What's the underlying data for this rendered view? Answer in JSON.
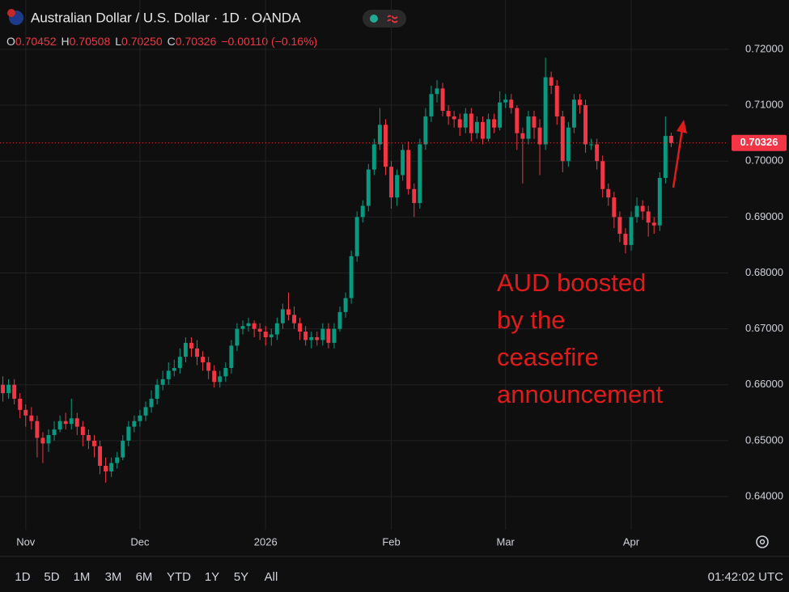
{
  "header": {
    "symbol": "Australian Dollar / U.S. Dollar · 1D · OANDA",
    "ohlc": [
      {
        "key": "O",
        "value": "0.70452"
      },
      {
        "key": "H",
        "value": "0.70508"
      },
      {
        "key": "L",
        "value": "0.70250"
      },
      {
        "key": "C",
        "value": "0.70326"
      }
    ],
    "change": "−0.00110 (−0.16%)"
  },
  "chart_data": {
    "type": "candlestick",
    "up_color": "#089981",
    "down_color": "#f23645",
    "xlim": [
      -0.5,
      127
    ],
    "xticks": [
      {
        "value": 4,
        "label": "Nov"
      },
      {
        "value": 24,
        "label": "Dec"
      },
      {
        "value": 46,
        "label": "2026"
      },
      {
        "value": 68,
        "label": "Feb"
      },
      {
        "value": 88,
        "label": "Mar"
      },
      {
        "value": 110,
        "label": "Apr"
      }
    ],
    "ylim": [
      0.63407,
      0.72882
    ],
    "yticks": [
      {
        "value": 0.64,
        "label": "0.64000"
      },
      {
        "value": 0.65,
        "label": "0.65000"
      },
      {
        "value": 0.66,
        "label": "0.66000"
      },
      {
        "value": 0.67,
        "label": "0.67000"
      },
      {
        "value": 0.68,
        "label": "0.68000"
      },
      {
        "value": 0.69,
        "label": "0.69000"
      },
      {
        "value": 0.7,
        "label": "0.70000"
      },
      {
        "value": 0.71,
        "label": "0.71000"
      },
      {
        "value": 0.72,
        "label": "0.72000"
      }
    ],
    "grid": true,
    "last_price": {
      "value": 0.70326,
      "label": "0.70326"
    },
    "annotation": {
      "lines": [
        "AUD boosted",
        "by the",
        "ceasefire",
        "announcement"
      ],
      "color": "#e01b1b"
    },
    "open": [
      0.66,
      0.6585,
      0.66,
      0.6575,
      0.6555,
      0.6545,
      0.6535,
      0.6505,
      0.6495,
      0.651,
      0.652,
      0.6535,
      0.653,
      0.654,
      0.6525,
      0.651,
      0.65,
      0.649,
      0.6455,
      0.6445,
      0.646,
      0.647,
      0.65,
      0.6525,
      0.6535,
      0.6545,
      0.656,
      0.6575,
      0.66,
      0.661,
      0.6625,
      0.663,
      0.665,
      0.6675,
      0.6665,
      0.665,
      0.664,
      0.6625,
      0.6605,
      0.6615,
      0.663,
      0.667,
      0.67,
      0.6705,
      0.671,
      0.67,
      0.6695,
      0.6685,
      0.669,
      0.671,
      0.6735,
      0.6725,
      0.671,
      0.6695,
      0.668,
      0.6685,
      0.668,
      0.67,
      0.6675,
      0.67,
      0.673,
      0.6755,
      0.683,
      0.69,
      0.692,
      0.6985,
      0.703,
      0.7065,
      0.699,
      0.6935,
      0.6975,
      0.702,
      0.695,
      0.6925,
      0.703,
      0.708,
      0.712,
      0.713,
      0.709,
      0.708,
      0.7075,
      0.706,
      0.7085,
      0.705,
      0.707,
      0.704,
      0.7075,
      0.706,
      0.7105,
      0.711,
      0.7095,
      0.705,
      0.704,
      0.708,
      0.706,
      0.703,
      0.715,
      0.7135,
      0.708,
      0.7,
      0.706,
      0.711,
      0.71,
      0.703,
      0.703,
      0.7,
      0.695,
      0.6935,
      0.69,
      0.687,
      0.685,
      0.69,
      0.692,
      0.691,
      0.689,
      0.6885,
      0.697,
      0.70452
    ],
    "high": [
      0.6615,
      0.661,
      0.661,
      0.6585,
      0.6565,
      0.656,
      0.6545,
      0.6515,
      0.652,
      0.6535,
      0.6545,
      0.655,
      0.6575,
      0.655,
      0.6535,
      0.652,
      0.651,
      0.65,
      0.647,
      0.647,
      0.648,
      0.651,
      0.6535,
      0.6545,
      0.6555,
      0.657,
      0.659,
      0.661,
      0.6625,
      0.664,
      0.6645,
      0.6665,
      0.6685,
      0.6685,
      0.668,
      0.666,
      0.665,
      0.6635,
      0.6625,
      0.664,
      0.668,
      0.671,
      0.6715,
      0.672,
      0.6715,
      0.671,
      0.6705,
      0.67,
      0.672,
      0.6745,
      0.6765,
      0.674,
      0.672,
      0.6705,
      0.6695,
      0.6695,
      0.671,
      0.671,
      0.671,
      0.674,
      0.6765,
      0.684,
      0.691,
      0.693,
      0.6995,
      0.704,
      0.7095,
      0.7075,
      0.7,
      0.6985,
      0.703,
      0.7035,
      0.696,
      0.704,
      0.7095,
      0.7135,
      0.7145,
      0.714,
      0.71,
      0.709,
      0.7085,
      0.7095,
      0.7095,
      0.708,
      0.708,
      0.7085,
      0.7085,
      0.7125,
      0.712,
      0.712,
      0.71,
      0.706,
      0.709,
      0.709,
      0.7075,
      0.7185,
      0.716,
      0.7145,
      0.709,
      0.707,
      0.712,
      0.712,
      0.711,
      0.704,
      0.704,
      0.701,
      0.696,
      0.6945,
      0.691,
      0.688,
      0.691,
      0.6935,
      0.693,
      0.692,
      0.69,
      0.698,
      0.708,
      0.70508
    ],
    "low": [
      0.657,
      0.6575,
      0.6565,
      0.654,
      0.6525,
      0.652,
      0.647,
      0.646,
      0.648,
      0.65,
      0.6515,
      0.652,
      0.652,
      0.651,
      0.649,
      0.6485,
      0.647,
      0.644,
      0.6425,
      0.6435,
      0.645,
      0.6465,
      0.649,
      0.6515,
      0.6525,
      0.6535,
      0.655,
      0.6565,
      0.659,
      0.66,
      0.6615,
      0.662,
      0.664,
      0.665,
      0.6635,
      0.6625,
      0.661,
      0.6595,
      0.6595,
      0.6605,
      0.662,
      0.666,
      0.669,
      0.6695,
      0.6685,
      0.668,
      0.667,
      0.667,
      0.668,
      0.67,
      0.6715,
      0.67,
      0.668,
      0.667,
      0.6665,
      0.667,
      0.667,
      0.6665,
      0.6665,
      0.6695,
      0.672,
      0.6745,
      0.682,
      0.689,
      0.691,
      0.6975,
      0.702,
      0.6975,
      0.6915,
      0.692,
      0.6965,
      0.694,
      0.69,
      0.6915,
      0.702,
      0.707,
      0.7105,
      0.708,
      0.7065,
      0.706,
      0.7045,
      0.705,
      0.7035,
      0.704,
      0.703,
      0.7035,
      0.705,
      0.7055,
      0.7095,
      0.7085,
      0.702,
      0.696,
      0.703,
      0.704,
      0.6975,
      0.702,
      0.712,
      0.7065,
      0.698,
      0.699,
      0.705,
      0.7085,
      0.7015,
      0.702,
      0.6985,
      0.6935,
      0.692,
      0.688,
      0.6855,
      0.6835,
      0.684,
      0.689,
      0.6895,
      0.6865,
      0.687,
      0.6875,
      0.696,
      0.7025
    ],
    "close": [
      0.6585,
      0.66,
      0.6575,
      0.6555,
      0.6545,
      0.6535,
      0.6505,
      0.6495,
      0.651,
      0.652,
      0.6535,
      0.653,
      0.654,
      0.6525,
      0.651,
      0.65,
      0.649,
      0.6455,
      0.6445,
      0.646,
      0.647,
      0.65,
      0.6525,
      0.6535,
      0.6545,
      0.656,
      0.6575,
      0.66,
      0.661,
      0.6625,
      0.663,
      0.665,
      0.6675,
      0.6665,
      0.665,
      0.664,
      0.6625,
      0.6605,
      0.6615,
      0.663,
      0.667,
      0.67,
      0.6705,
      0.671,
      0.67,
      0.6695,
      0.6685,
      0.669,
      0.671,
      0.6735,
      0.6725,
      0.671,
      0.6695,
      0.668,
      0.6685,
      0.668,
      0.67,
      0.6675,
      0.67,
      0.673,
      0.6755,
      0.683,
      0.69,
      0.692,
      0.6985,
      0.703,
      0.7065,
      0.699,
      0.6935,
      0.6975,
      0.702,
      0.695,
      0.6925,
      0.703,
      0.708,
      0.712,
      0.713,
      0.709,
      0.708,
      0.7075,
      0.706,
      0.7085,
      0.705,
      0.707,
      0.704,
      0.7075,
      0.706,
      0.7105,
      0.711,
      0.7095,
      0.705,
      0.704,
      0.708,
      0.706,
      0.703,
      0.715,
      0.7135,
      0.708,
      0.7,
      0.706,
      0.711,
      0.71,
      0.703,
      0.703,
      0.7,
      0.695,
      0.6935,
      0.69,
      0.687,
      0.685,
      0.69,
      0.692,
      0.691,
      0.689,
      0.6885,
      0.697,
      0.7045,
      0.70326
    ]
  },
  "toolbar": {
    "ranges": [
      "1D",
      "5D",
      "1M",
      "3M",
      "6M",
      "YTD",
      "1Y",
      "5Y",
      "All"
    ],
    "time": "01:42:02 UTC"
  }
}
